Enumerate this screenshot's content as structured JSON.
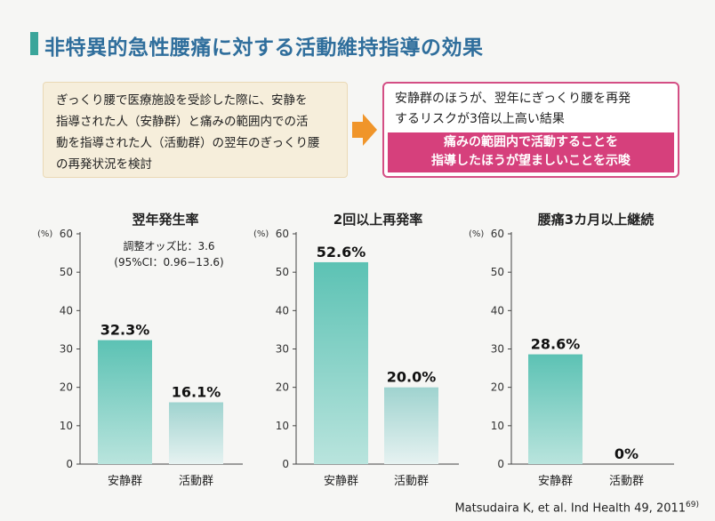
{
  "header": {
    "title": "非特異的急性腰痛に対する活動維持指導の効果"
  },
  "study_box": {
    "lines": [
      "ぎっくり腰で医療施設を受診した際に、安静を",
      "指導された人（安静群）と痛みの範囲内での活",
      "動を指導された人（活動群）の翌年のぎっくり腰",
      "の再発状況を検討"
    ]
  },
  "result_box": {
    "lines": [
      "安静群のほうが、翌年にぎっくり腰を再発",
      "するリスクが3倍以上高い結果"
    ],
    "highlight_lines": [
      "痛みの範囲内で活動することを",
      "指導したほうが望ましいことを示唆"
    ]
  },
  "citation": {
    "text": "Matsudaira K, et al. Ind Health 49, 2011",
    "ref": "69)"
  },
  "colors": {
    "title": "#2f6e9c",
    "accent_bar": "#3aa59a",
    "rest_bar_top": "#5cc2b4",
    "rest_bar_bottom": "#b9e4dd",
    "active_bar_top": "#9fd3cf",
    "active_bar_bottom": "#e6f2f1",
    "highlight": "#d6407c",
    "arrow": "#f0952a"
  },
  "chart_data": [
    {
      "type": "bar",
      "title": "翌年発生率",
      "ylabel": "(%)",
      "ylim": [
        0,
        60
      ],
      "yticks": [
        0,
        10,
        20,
        30,
        40,
        50,
        60
      ],
      "categories": [
        "安静群",
        "活動群"
      ],
      "values": [
        32.3,
        16.1
      ],
      "value_labels": [
        "32.3%",
        "16.1%"
      ],
      "annotation": [
        "調整オッズ比：3.6",
        "(95%CI：0.96−13.6)"
      ]
    },
    {
      "type": "bar",
      "title": "2回以上再発率",
      "ylabel": "(%)",
      "ylim": [
        0,
        60
      ],
      "yticks": [
        0,
        10,
        20,
        30,
        40,
        50,
        60
      ],
      "categories": [
        "安静群",
        "活動群"
      ],
      "values": [
        52.6,
        20.0
      ],
      "value_labels": [
        "52.6%",
        "20.0%"
      ]
    },
    {
      "type": "bar",
      "title": "腰痛3カ月以上継続",
      "ylabel": "(%)",
      "ylim": [
        0,
        60
      ],
      "yticks": [
        0,
        10,
        20,
        30,
        40,
        50,
        60
      ],
      "categories": [
        "安静群",
        "活動群"
      ],
      "values": [
        28.6,
        0
      ],
      "value_labels": [
        "28.6%",
        "0%"
      ]
    }
  ]
}
